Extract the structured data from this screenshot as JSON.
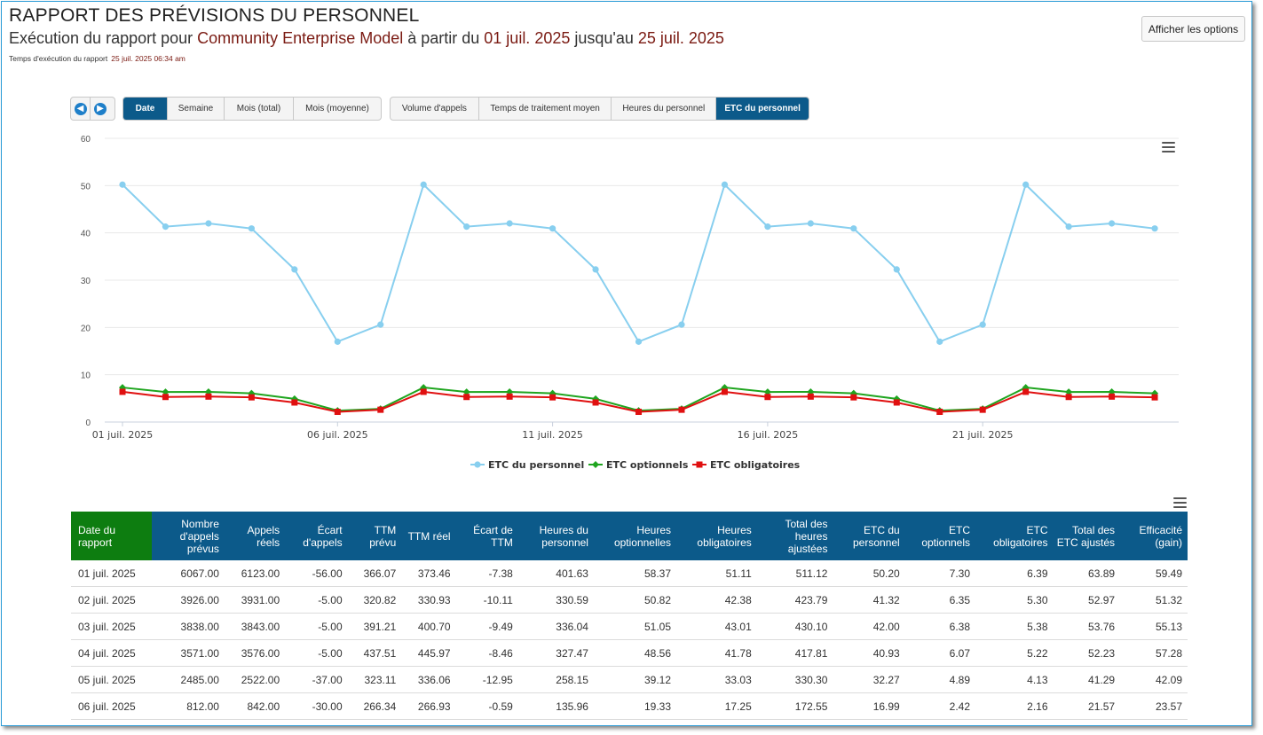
{
  "header": {
    "title": "RAPPORT DES PRÉVISIONS DU PERSONNEL",
    "subtitle_prefix": "Exécution du rapport pour ",
    "entity": "Community Enterprise Model",
    "subtitle_from": " à partir du ",
    "date_from": "01 juil. 2025",
    "subtitle_to": " jusqu'au ",
    "date_to": "25 juil. 2025",
    "runtime_label": "Temps d'exécution du rapport",
    "runtime_value": "25 juil. 2025 06:34 am",
    "options_button": "Afficher les options"
  },
  "period_tabs": {
    "prev_icon": "arrow-left-icon",
    "next_icon": "arrow-right-icon",
    "items": [
      "Date",
      "Semaine",
      "Mois (total)",
      "Mois (moyenne)"
    ],
    "active": "Date"
  },
  "metric_tabs": {
    "items": [
      "Volume d'appels",
      "Temps de traitement moyen",
      "Heures du personnel",
      "ETC du personnel"
    ],
    "active": "ETC du personnel"
  },
  "chart_data": {
    "type": "line",
    "x_labels": [
      "01 juil. 2025",
      "06 juil. 2025",
      "11 juil. 2025",
      "16 juil. 2025",
      "21 juil. 2025"
    ],
    "x": [
      "01 juil.",
      "02 juil.",
      "03 juil.",
      "04 juil.",
      "05 juil.",
      "06 juil.",
      "07 juil.",
      "08 juil.",
      "09 juil.",
      "10 juil.",
      "11 juil.",
      "12 juil.",
      "13 juil.",
      "14 juil.",
      "15 juil.",
      "16 juil.",
      "17 juil.",
      "18 juil.",
      "19 juil.",
      "20 juil.",
      "21 juil.",
      "22 juil.",
      "23 juil.",
      "24 juil.",
      "25 juil."
    ],
    "yticks": [
      0,
      10,
      20,
      30,
      40,
      50,
      60
    ],
    "ylim": [
      0,
      60
    ],
    "grid": true,
    "legend_position": "bottom",
    "series": [
      {
        "name": "ETC du personnel",
        "color": "#88cfef",
        "marker": "circle",
        "values": [
          50.2,
          41.32,
          42.0,
          40.93,
          32.27,
          16.99,
          20.6,
          50.2,
          41.32,
          42.0,
          40.93,
          32.27,
          16.99,
          20.6,
          50.2,
          41.32,
          42.0,
          40.93,
          32.27,
          16.99,
          20.6,
          50.2,
          41.32,
          42.0,
          40.93
        ]
      },
      {
        "name": "ETC optionnels",
        "color": "#1fa51f",
        "marker": "diamond",
        "values": [
          7.3,
          6.35,
          6.38,
          6.07,
          4.89,
          2.42,
          2.8,
          7.3,
          6.35,
          6.38,
          6.07,
          4.89,
          2.42,
          2.8,
          7.3,
          6.35,
          6.38,
          6.07,
          4.89,
          2.42,
          2.8,
          7.3,
          6.35,
          6.38,
          6.07
        ]
      },
      {
        "name": "ETC obligatoires",
        "color": "#e01010",
        "marker": "square",
        "values": [
          6.39,
          5.3,
          5.38,
          5.22,
          4.13,
          2.16,
          2.6,
          6.39,
          5.3,
          5.38,
          5.22,
          4.13,
          2.16,
          2.6,
          6.39,
          5.3,
          5.38,
          5.22,
          4.13,
          2.16,
          2.6,
          6.39,
          5.3,
          5.38,
          5.22
        ]
      }
    ]
  },
  "table": {
    "columns": [
      "Date du rapport",
      "Nombre d'appels prévus",
      "Appels réels",
      "Écart d'appels",
      "TTM prévu",
      "TTM réel",
      "Écart de TTM",
      "Heures du personnel",
      "Heures optionnelles",
      "Heures obligatoires",
      "Total des heures ajustées",
      "ETC du personnel",
      "ETC optionnels",
      "ETC obligatoires",
      "Total des ETC ajustés",
      "Efficacité (gain)"
    ],
    "column_colors": [
      "",
      "",
      "",
      "neg",
      "",
      "",
      "neg",
      "",
      "grn",
      "neg",
      "",
      "",
      "grn",
      "neg",
      "",
      "grn"
    ],
    "rows": [
      [
        "01 juil. 2025",
        "6067.00",
        "6123.00",
        "-56.00",
        "366.07",
        "373.46",
        "-7.38",
        "401.63",
        "58.37",
        "51.11",
        "511.12",
        "50.20",
        "7.30",
        "6.39",
        "63.89",
        "59.49"
      ],
      [
        "02 juil. 2025",
        "3926.00",
        "3931.00",
        "-5.00",
        "320.82",
        "330.93",
        "-10.11",
        "330.59",
        "50.82",
        "42.38",
        "423.79",
        "41.32",
        "6.35",
        "5.30",
        "52.97",
        "51.32"
      ],
      [
        "03 juil. 2025",
        "3838.00",
        "3843.00",
        "-5.00",
        "391.21",
        "400.70",
        "-9.49",
        "336.04",
        "51.05",
        "43.01",
        "430.10",
        "42.00",
        "6.38",
        "5.38",
        "53.76",
        "55.13"
      ],
      [
        "04 juil. 2025",
        "3571.00",
        "3576.00",
        "-5.00",
        "437.51",
        "445.97",
        "-8.46",
        "327.47",
        "48.56",
        "41.78",
        "417.81",
        "40.93",
        "6.07",
        "5.22",
        "52.23",
        "57.28"
      ],
      [
        "05 juil. 2025",
        "2485.00",
        "2522.00",
        "-37.00",
        "323.11",
        "336.06",
        "-12.95",
        "258.15",
        "39.12",
        "33.03",
        "330.30",
        "32.27",
        "4.89",
        "4.13",
        "41.29",
        "42.09"
      ],
      [
        "06 juil. 2025",
        "812.00",
        "842.00",
        "-30.00",
        "266.34",
        "266.93",
        "-0.59",
        "135.96",
        "19.33",
        "17.25",
        "172.55",
        "16.99",
        "2.42",
        "2.16",
        "21.57",
        "23.57"
      ]
    ]
  }
}
